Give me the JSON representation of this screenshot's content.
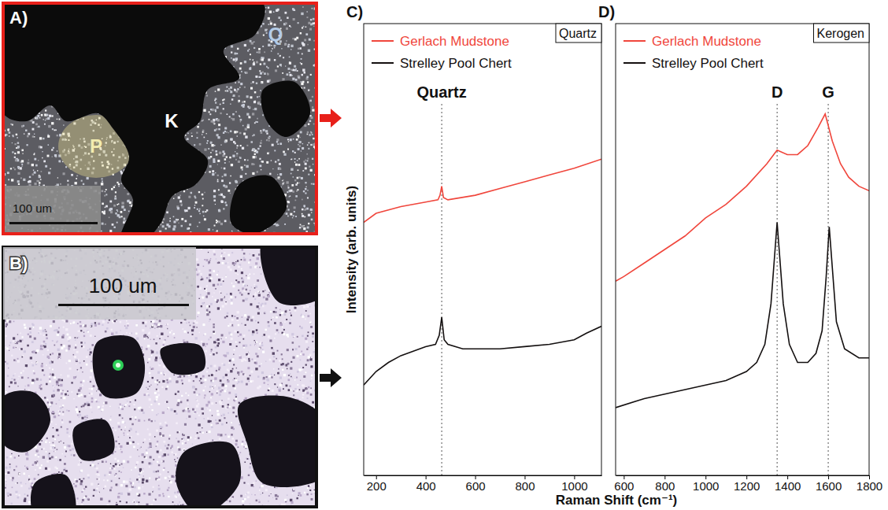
{
  "images": [
    {
      "letter": "A)",
      "labels": [
        "P",
        "K",
        "Q"
      ],
      "scale_bar": "100 um"
    },
    {
      "letter": "B)",
      "scale_bar": "100 um"
    }
  ],
  "chart_data": [
    {
      "type": "line",
      "letter": "C)",
      "title": "Quartz",
      "y_label": "Intensity (arb. units)",
      "x_label": "Raman Shift (cm⁻¹)",
      "xlim": [
        150,
        1110
      ],
      "xticks": [
        200,
        400,
        600,
        800,
        1000
      ],
      "ylim": [
        0,
        100
      ],
      "tick_labels": "x",
      "legend": "upper left",
      "annotations": [
        {
          "text": "Quartz",
          "x": 465
        }
      ],
      "series": [
        {
          "name": "Gerlach Mudstone",
          "color": "#f0463c",
          "x": [
            150,
            200,
            300,
            400,
            450,
            458,
            465,
            472,
            490,
            600,
            700,
            800,
            900,
            1000,
            1110
          ],
          "values": [
            56,
            58,
            59.5,
            60.5,
            61,
            62,
            64,
            61.5,
            61,
            62,
            63.5,
            65,
            66.5,
            68,
            70
          ]
        },
        {
          "name": "Strelley Pool Chert",
          "color": "#141010",
          "x": [
            150,
            200,
            250,
            300,
            350,
            400,
            440,
            455,
            465,
            475,
            490,
            550,
            600,
            700,
            800,
            900,
            1000,
            1050,
            1110
          ],
          "values": [
            20,
            23,
            25,
            26.5,
            27.5,
            28.5,
            29,
            31,
            35,
            30,
            29,
            28,
            28,
            28,
            28.5,
            29,
            30,
            31.5,
            33
          ]
        }
      ]
    },
    {
      "type": "line",
      "letter": "D)",
      "title": "Kerogen",
      "xlim": [
        560,
        1800
      ],
      "xticks": [
        600,
        800,
        1000,
        1200,
        1400,
        1600,
        1800
      ],
      "ylim": [
        0,
        100
      ],
      "tick_labels": "x",
      "legend": "upper left",
      "annotations": [
        {
          "text": "D",
          "x": 1350
        },
        {
          "text": "G",
          "x": 1600
        }
      ],
      "series": [
        {
          "name": "Gerlach Mudstone",
          "color": "#f0463c",
          "x": [
            560,
            600,
            700,
            800,
            900,
            1000,
            1100,
            1200,
            1300,
            1350,
            1400,
            1450,
            1500,
            1550,
            1585,
            1620,
            1660,
            1700,
            1750,
            1800
          ],
          "values": [
            43,
            44,
            47,
            50,
            53,
            57,
            60,
            64,
            69,
            72,
            71,
            71,
            73,
            77,
            80,
            74,
            69,
            66,
            64,
            63
          ]
        },
        {
          "name": "Strelley Pool Chert",
          "color": "#141010",
          "x": [
            560,
            700,
            800,
            1000,
            1100,
            1200,
            1250,
            1290,
            1320,
            1340,
            1350,
            1360,
            1380,
            1410,
            1450,
            1500,
            1540,
            1570,
            1590,
            1605,
            1620,
            1640,
            1680,
            1750,
            1800
          ],
          "values": [
            15,
            17,
            18,
            20,
            21,
            23,
            25,
            29,
            38,
            50,
            56,
            50,
            38,
            29,
            25,
            25,
            27,
            32,
            44,
            55,
            46,
            34,
            28,
            26,
            26
          ]
        }
      ]
    }
  ]
}
